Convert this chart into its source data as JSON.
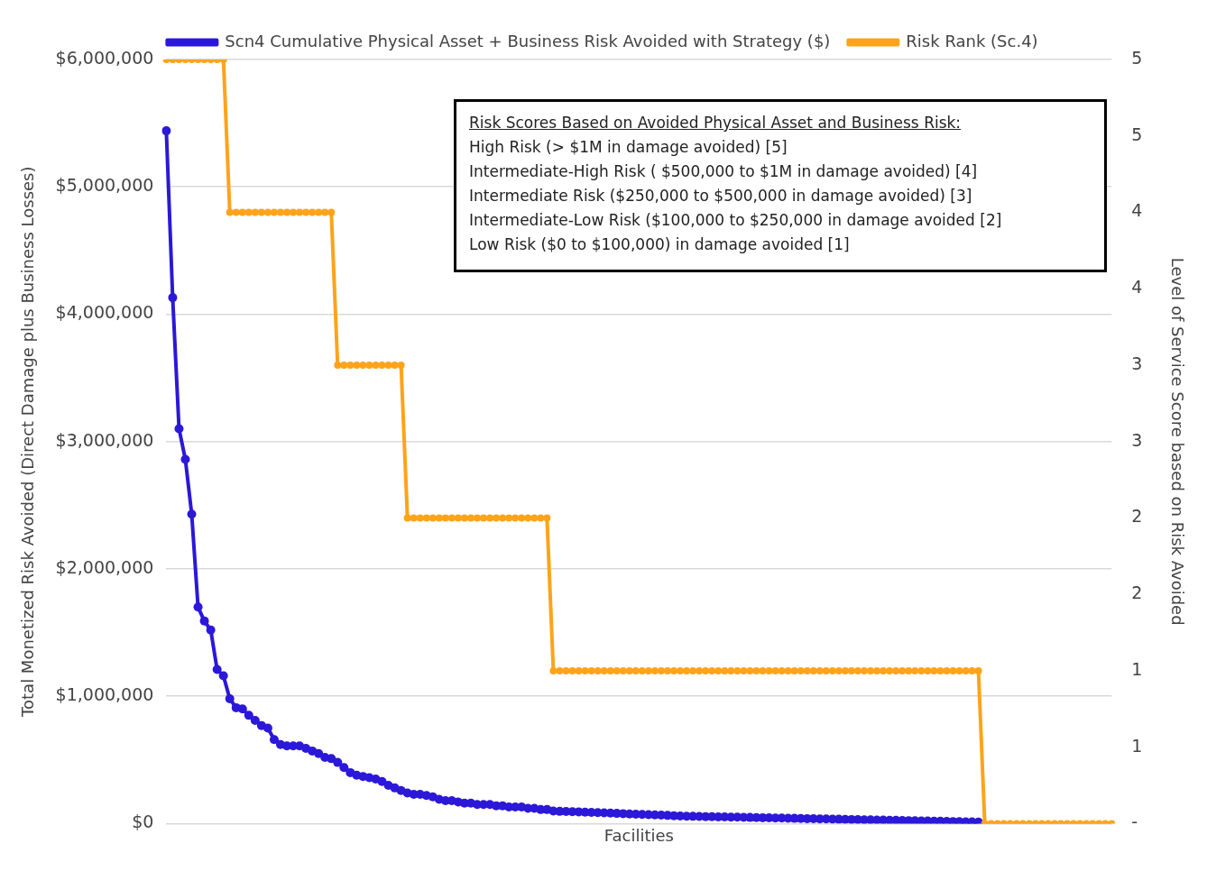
{
  "chart_data": {
    "type": "line",
    "xlabel": "Facilities",
    "ylabel": "Total Monetized Risk Avoided (Direct Damage plus Business Losses)",
    "y2label": "Level of Service Score based on Risk Avoided",
    "categories": [
      null,
      null,
      null,
      null,
      null,
      null,
      null,
      null,
      null,
      null,
      null,
      null,
      null,
      null,
      null,
      null,
      null,
      null,
      null,
      null,
      null,
      null,
      null,
      null,
      null,
      null,
      null,
      null,
      null,
      null,
      null,
      null,
      null,
      null,
      null,
      null,
      null,
      null,
      null,
      null,
      null,
      null,
      null,
      null,
      null,
      null,
      null,
      null,
      null,
      null,
      null,
      null,
      null,
      null,
      null,
      null,
      null,
      null,
      null,
      null,
      null,
      null,
      null,
      null,
      null,
      null,
      null,
      null,
      null,
      null,
      null,
      null,
      null,
      null,
      null,
      null,
      null,
      null,
      null,
      null,
      null,
      null,
      null,
      null,
      null,
      null,
      null,
      null,
      null,
      null,
      null,
      null,
      null,
      null,
      null,
      null,
      null,
      null,
      null,
      null,
      null,
      null,
      null,
      null,
      null,
      null,
      null,
      null,
      null,
      null,
      null,
      null,
      null,
      null,
      null,
      null,
      null,
      null,
      null,
      null,
      null,
      null,
      null,
      null,
      null,
      null,
      null,
      null,
      null,
      null,
      null,
      null,
      null,
      null,
      null,
      null,
      null,
      null,
      null,
      null,
      null,
      null,
      null,
      null,
      null,
      null,
      null,
      null,
      null,
      null
    ],
    "series": [
      {
        "name": "Scn4 Cumulative Physical Asset + Business Risk Avoided with Strategy ($)",
        "color": "#2b18d8",
        "axis": "y",
        "values": [
          5440000,
          4130000,
          3100000,
          2860000,
          2430000,
          1700000,
          1590000,
          1520000,
          1210000,
          1160000,
          980000,
          910000,
          900000,
          850000,
          810000,
          770000,
          750000,
          660000,
          620000,
          610000,
          610000,
          610000,
          590000,
          570000,
          550000,
          520000,
          510000,
          480000,
          440000,
          400000,
          380000,
          370000,
          360000,
          350000,
          330000,
          300000,
          280000,
          260000,
          240000,
          230000,
          230000,
          220000,
          210000,
          190000,
          180000,
          180000,
          170000,
          160000,
          160000,
          150000,
          150000,
          150000,
          140000,
          140000,
          130000,
          130000,
          130000,
          120000,
          120000,
          110000,
          110000,
          98000,
          96000,
          95000,
          93000,
          92000,
          90000,
          88000,
          86000,
          84000,
          82000,
          80000,
          78000,
          76000,
          74000,
          72000,
          70000,
          68000,
          66000,
          64000,
          62000,
          60000,
          58000,
          57000,
          56000,
          55000,
          54000,
          53000,
          52000,
          51000,
          50000,
          49000,
          48000,
          47000,
          46000,
          45000,
          44000,
          43000,
          42000,
          41000,
          40000,
          39000,
          38000,
          37000,
          36000,
          35000,
          34000,
          33000,
          32000,
          31000,
          30000,
          29000,
          28000,
          27000,
          26000,
          25000,
          24000,
          23000,
          22000,
          21000,
          20000,
          19000,
          18000,
          17000,
          16000,
          15000,
          14000,
          13000,
          12000,
          null,
          null,
          null,
          null,
          null,
          null,
          null,
          null,
          null,
          null,
          null,
          null,
          null,
          null,
          null,
          null,
          null,
          null,
          null,
          null,
          null
        ]
      },
      {
        "name": "Risk Rank (Sc.4)",
        "color": "#ffa31a",
        "axis": "y2",
        "values": [
          5,
          5,
          5,
          5,
          5,
          5,
          5,
          5,
          5,
          5,
          4,
          4,
          4,
          4,
          4,
          4,
          4,
          4,
          4,
          4,
          4,
          4,
          4,
          4,
          4,
          4,
          4,
          3,
          3,
          3,
          3,
          3,
          3,
          3,
          3,
          3,
          3,
          3,
          2,
          2,
          2,
          2,
          2,
          2,
          2,
          2,
          2,
          2,
          2,
          2,
          2,
          2,
          2,
          2,
          2,
          2,
          2,
          2,
          2,
          2,
          2,
          1,
          1,
          1,
          1,
          1,
          1,
          1,
          1,
          1,
          1,
          1,
          1,
          1,
          1,
          1,
          1,
          1,
          1,
          1,
          1,
          1,
          1,
          1,
          1,
          1,
          1,
          1,
          1,
          1,
          1,
          1,
          1,
          1,
          1,
          1,
          1,
          1,
          1,
          1,
          1,
          1,
          1,
          1,
          1,
          1,
          1,
          1,
          1,
          1,
          1,
          1,
          1,
          1,
          1,
          1,
          1,
          1,
          1,
          1,
          1,
          1,
          1,
          1,
          1,
          1,
          1,
          1,
          1,
          0,
          0,
          0,
          0,
          0,
          0,
          0,
          0,
          0,
          0,
          0,
          0,
          0,
          0,
          0,
          0,
          0,
          0,
          0,
          0,
          0
        ]
      }
    ],
    "ylim": [
      0,
      6000000
    ],
    "yticks": [
      {
        "value": 0,
        "label": "$0"
      },
      {
        "value": 1000000,
        "label": "$1,000,000"
      },
      {
        "value": 2000000,
        "label": "$2,000,000"
      },
      {
        "value": 3000000,
        "label": "$3,000,000"
      },
      {
        "value": 4000000,
        "label": "$4,000,000"
      },
      {
        "value": 5000000,
        "label": "$5,000,000"
      },
      {
        "value": 6000000,
        "label": "$6,000,000"
      }
    ],
    "y2lim": [
      0,
      5
    ],
    "y2ticks": [
      {
        "value": 0,
        "label": "-"
      },
      {
        "value": 0.5,
        "label": "1"
      },
      1,
      {
        "value": 1.5,
        "label": "2"
      },
      2,
      {
        "value": 2.5,
        "label": "3"
      },
      3,
      {
        "value": 3.5,
        "label": "4"
      },
      4,
      {
        "value": 4.5,
        "label": "5"
      },
      5
    ],
    "tick_labels": "y",
    "annotations": [
      "Risk Scores Based on Avoided Physical Asset and Business Risk:",
      "High Risk (> $1M in damage avoided) [5]",
      "Intermediate-High Risk ( $500,000  to $1M in damage avoided) [4]",
      "Intermediate Risk ($250,000 to $500,000  in damage avoided) [3]",
      "Intermediate-Low Risk ($100,000 to $250,000  in damage avoided [2]",
      "Low Risk ($0 to $100,000)  in damage avoided [1]"
    ],
    "grid": "y",
    "legend": "top",
    "marker": "circle",
    "line_style": "solid"
  }
}
